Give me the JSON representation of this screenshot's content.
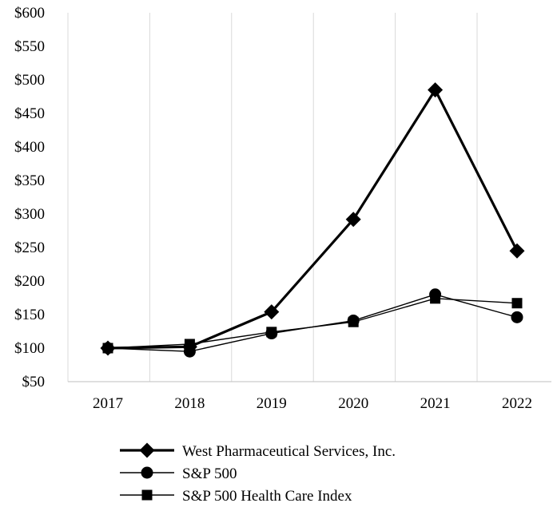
{
  "chart_data": {
    "type": "line",
    "categories": [
      "2017",
      "2018",
      "2019",
      "2020",
      "2021",
      "2022"
    ],
    "y_ticks": [
      "$50",
      "$100",
      "$150",
      "$200",
      "$250",
      "$300",
      "$350",
      "$400",
      "$450",
      "$500",
      "$550",
      "$600"
    ],
    "ylim": [
      50,
      600
    ],
    "grid": "vertical",
    "legend_position": "bottom",
    "series": [
      {
        "name": "West Pharmaceutical Services, Inc.",
        "values": [
          100,
          102,
          154,
          292,
          485,
          245
        ],
        "marker": "diamond",
        "line": "thick"
      },
      {
        "name": "S&P 500",
        "values": [
          100,
          95,
          122,
          141,
          180,
          146
        ],
        "marker": "circle",
        "line": "thin"
      },
      {
        "name": "S&P 500 Health Care Index",
        "values": [
          100,
          106,
          124,
          139,
          174,
          167
        ],
        "marker": "square",
        "line": "thin"
      }
    ],
    "colors": {
      "line": "#000000",
      "grid": "#d9d9d9"
    }
  }
}
